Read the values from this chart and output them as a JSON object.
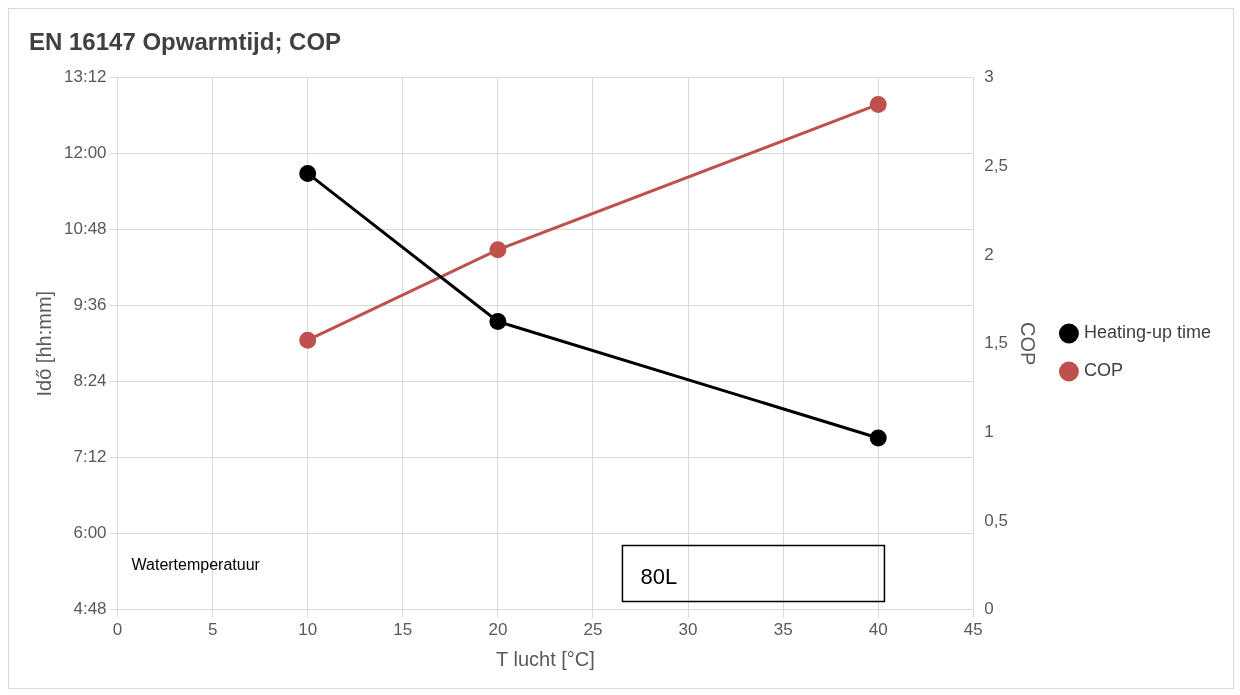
{
  "chart_data": {
    "type": "line",
    "title": "EN 16147 Opwarmtijd; COP",
    "xlabel": "T lucht [°C]",
    "ylabel": "Idő [hh:mm]",
    "y2label": "COP",
    "x": [
      10,
      20,
      40
    ],
    "series": [
      {
        "name": "Heating-up time",
        "color": "#000000",
        "values": [
          11.69,
          9.35,
          7.51
        ]
      },
      {
        "name": "COP",
        "color": "#c0504d",
        "values": [
          1.52,
          2.03,
          2.85
        ],
        "axis": "y2"
      }
    ],
    "xlim": [
      0,
      45
    ],
    "xticks": [
      0,
      5,
      10,
      15,
      20,
      25,
      30,
      35,
      40,
      45
    ],
    "ylim": [
      4.8,
      13.2
    ],
    "yticks": [
      {
        "value": 4.8,
        "label": "4:48"
      },
      {
        "value": 6,
        "label": "6:00"
      },
      {
        "value": 7.2,
        "label": "7:12"
      },
      {
        "value": 8.4,
        "label": "8:24"
      },
      {
        "value": 9.6,
        "label": "9:36"
      },
      {
        "value": 10.8,
        "label": "10:48"
      },
      {
        "value": 12,
        "label": "12:00"
      },
      {
        "value": 13.2,
        "label": "13:12"
      }
    ],
    "y2lim": [
      0,
      3
    ],
    "y2ticks": [
      0,
      {
        "value": 0.5,
        "label": "0,5"
      },
      1,
      {
        "value": 1.5,
        "label": "1,5"
      },
      2,
      {
        "value": 2.5,
        "label": "2,5"
      },
      3
    ],
    "annotations": [
      "Watertemperatuur",
      "80L"
    ],
    "grid": true,
    "legend": "right",
    "marker": "circle",
    "line_style": "solid"
  }
}
